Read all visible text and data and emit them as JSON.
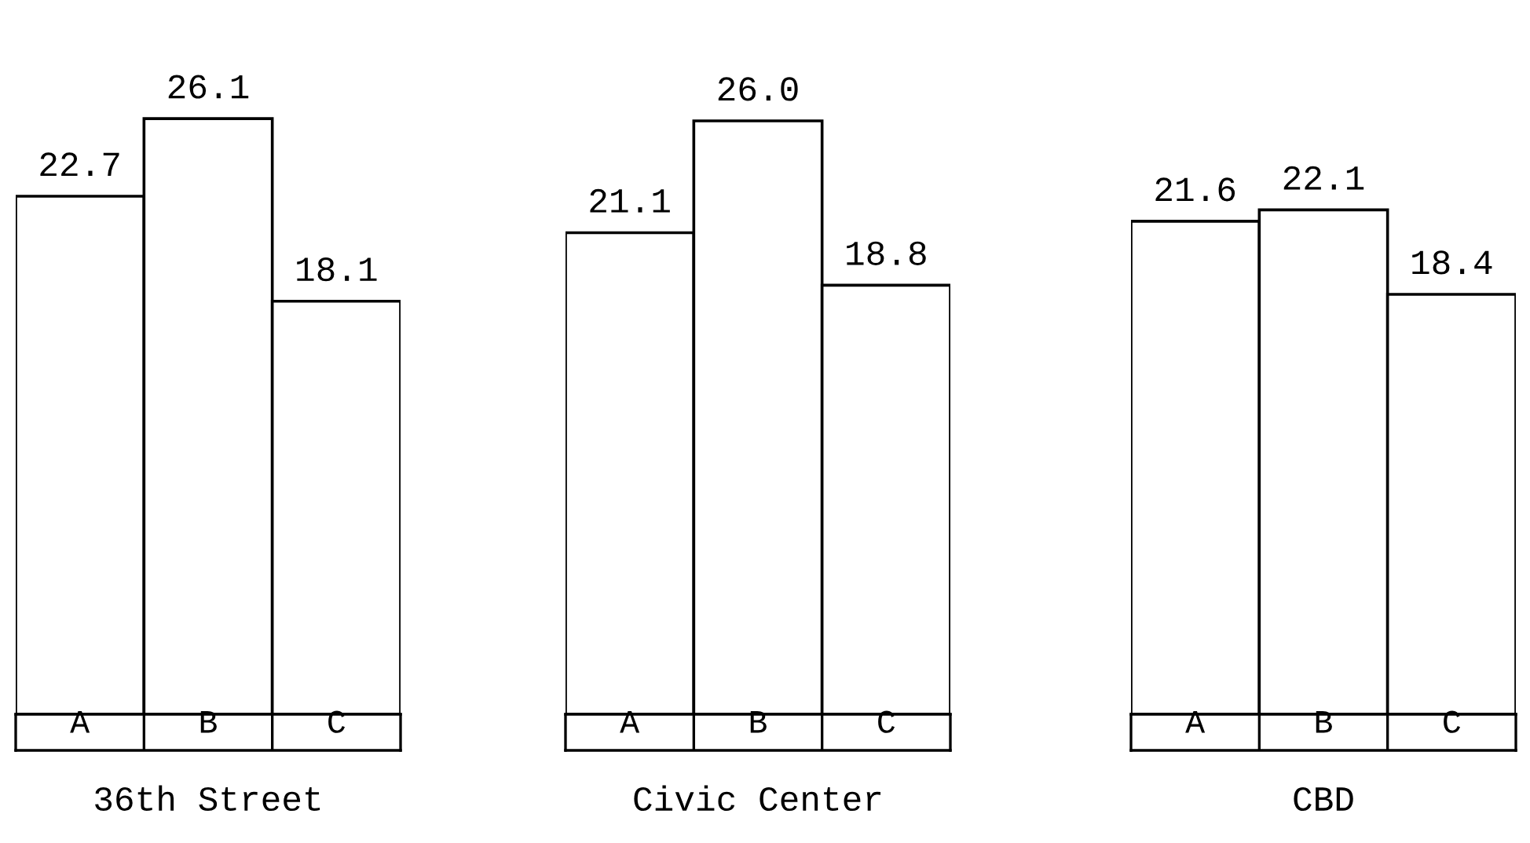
{
  "chart_data": [
    {
      "type": "bar",
      "xlabel": "36th Street",
      "categories": [
        "A",
        "B",
        "C"
      ],
      "values": [
        22.7,
        26.1,
        18.1
      ],
      "color": "#ffffff",
      "value_labels": [
        "22.7",
        "26.1",
        "18.1"
      ]
    },
    {
      "type": "bar",
      "xlabel": "Civic Center",
      "categories": [
        "A",
        "B",
        "C"
      ],
      "values": [
        21.1,
        26.0,
        18.8
      ],
      "color": "#ffffff",
      "value_labels": [
        "21.1",
        "26.0",
        "18.8"
      ]
    },
    {
      "type": "bar",
      "xlabel": "CBD",
      "categories": [
        "A",
        "B",
        "C"
      ],
      "values": [
        21.6,
        22.1,
        18.4
      ],
      "color": "#ffffff",
      "value_labels": [
        "21.6",
        "22.1",
        "18.4"
      ]
    }
  ]
}
